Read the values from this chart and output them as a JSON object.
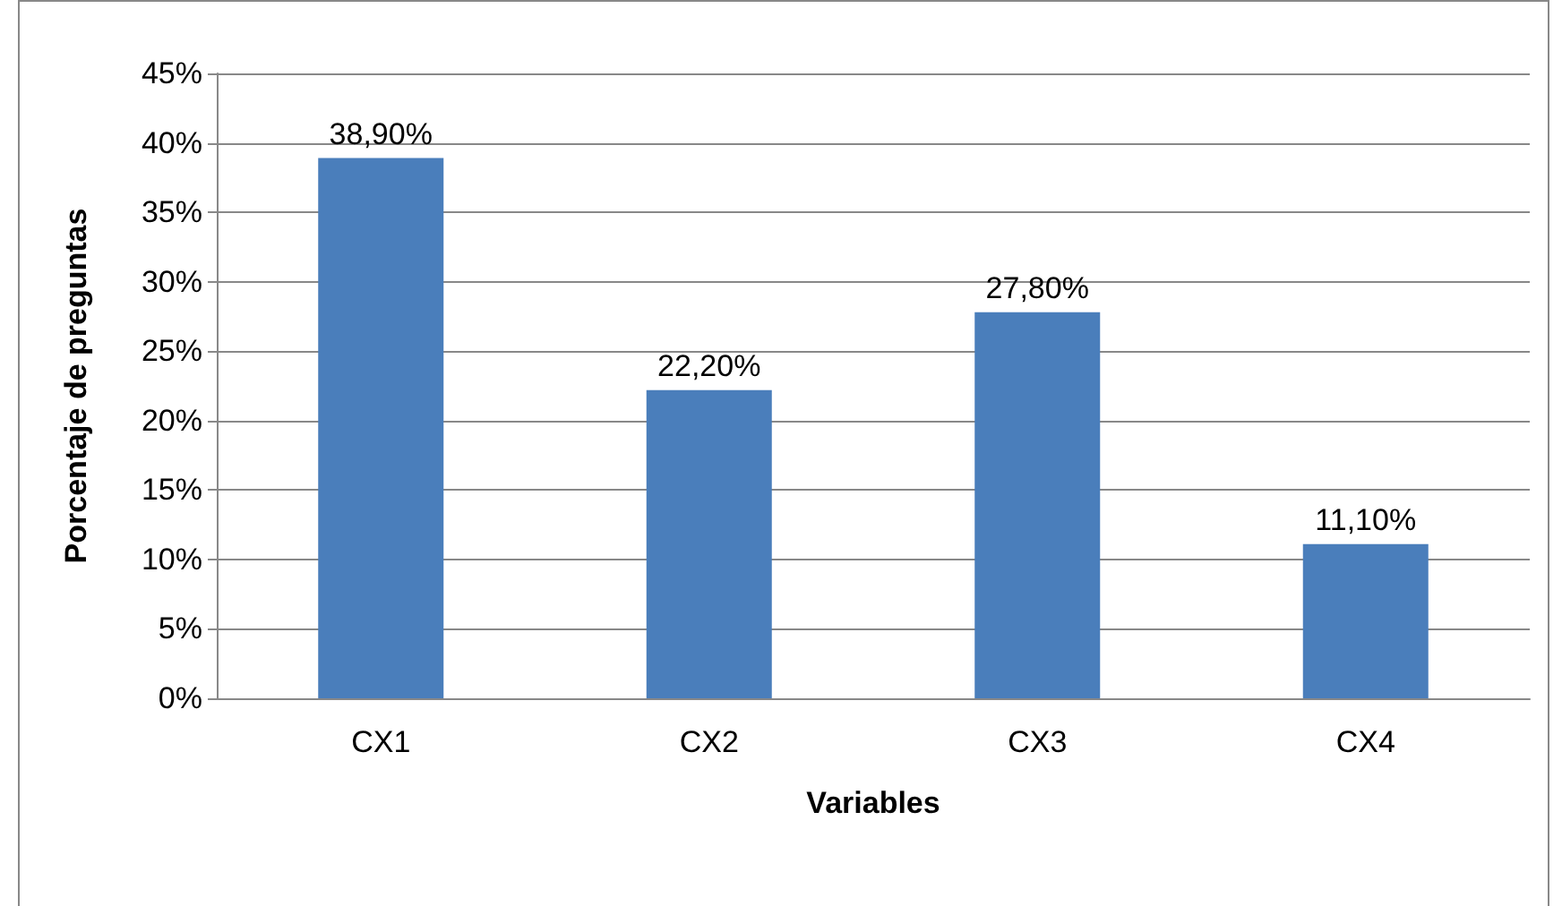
{
  "chart_data": {
    "type": "bar",
    "xlabel": "Variables",
    "ylabel": "Porcentaje de preguntas",
    "categories": [
      "CX1",
      "CX2",
      "CX3",
      "CX4"
    ],
    "values": [
      38.9,
      22.2,
      27.8,
      11.1
    ],
    "value_labels": [
      "38,90%",
      "22,20%",
      "27,80%",
      "11,10%"
    ],
    "color": "#4a7ebb",
    "ylim": [
      0,
      45
    ],
    "yticks": [
      {
        "value": 0,
        "label": "0%"
      },
      {
        "value": 5,
        "label": "5%"
      },
      {
        "value": 10,
        "label": "10%"
      },
      {
        "value": 15,
        "label": "15%"
      },
      {
        "value": 20,
        "label": "20%"
      },
      {
        "value": 25,
        "label": "25%"
      },
      {
        "value": 30,
        "label": "30%"
      },
      {
        "value": 35,
        "label": "35%"
      },
      {
        "value": 40,
        "label": "40%"
      },
      {
        "value": 45,
        "label": "45%"
      }
    ],
    "grid": "y"
  }
}
